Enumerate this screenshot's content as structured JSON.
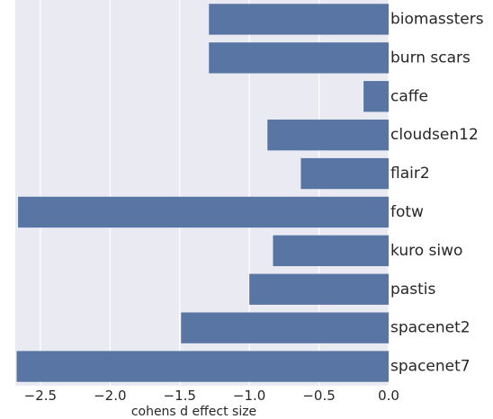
{
  "chart_data": {
    "type": "bar",
    "orientation": "horizontal",
    "categories": [
      "biomassters",
      "burn scars",
      "caffe",
      "cloudsen12",
      "flair2",
      "fotw",
      "kuro siwo",
      "pastis",
      "spacenet2",
      "spacenet7"
    ],
    "values": [
      -1.29,
      -1.29,
      -0.18,
      -0.87,
      -0.63,
      -2.66,
      -0.83,
      -1.0,
      -1.49,
      -2.67
    ],
    "xlabel": "cohens d effect size",
    "ylabel": "",
    "xlim": [
      -2.68,
      0.0
    ],
    "xticks": [
      -2.5,
      -2.0,
      -1.5,
      -1.0,
      -0.5,
      0.0
    ],
    "xtick_labels": [
      "−2.5",
      "−2.0",
      "−1.5",
      "−1.0",
      "−0.5",
      "0.0"
    ],
    "grid": true,
    "category_labels_side": "right",
    "bar_color": "#5975a4",
    "background_color": "#eaeaf2",
    "grid_color": "#ffffff"
  }
}
